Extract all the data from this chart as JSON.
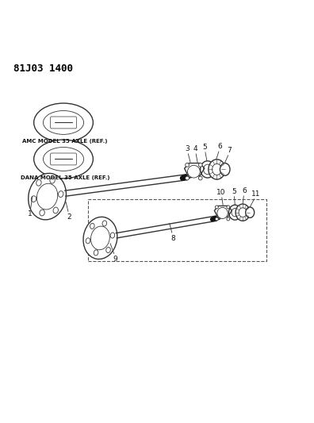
{
  "title": "81J03 1400",
  "bg_color": "#ffffff",
  "line_color": "#333333",
  "label_color": "#111111",
  "amc_text": "AMC MODEL 35 AXLE (REF.)",
  "dana_text": "DANA MODEL 35 AXLE (REF.)"
}
